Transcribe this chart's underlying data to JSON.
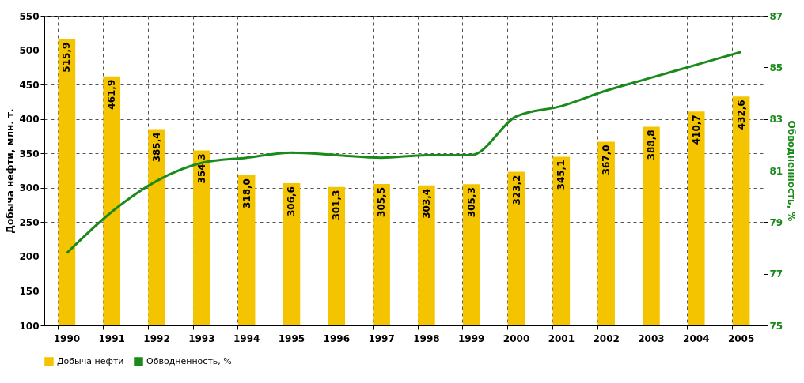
{
  "chart_data": {
    "type": "bar",
    "ylabel": "Добыча нефти, млн. т.",
    "y2label": "Обводненность, %",
    "categories": [
      "1990",
      "1991",
      "1992",
      "1993",
      "1994",
      "1995",
      "1996",
      "1997",
      "1998",
      "1999",
      "2000",
      "2001",
      "2002",
      "2003",
      "2004",
      "2005"
    ],
    "series": [
      {
        "name": "Добыча нефти",
        "color": "#f5c400",
        "values": [
          515.9,
          461.9,
          385.4,
          354.3,
          318.0,
          306.6,
          301.3,
          305.5,
          303.4,
          305.3,
          323.2,
          345.1,
          367.0,
          388.8,
          410.7,
          432.6
        ],
        "value_labels": [
          "515,9",
          "461,9",
          "385,4",
          "354,3",
          "318,0",
          "306,6",
          "301,3",
          "305,5",
          "303,4",
          "305,3",
          "323,2",
          "345,1",
          "367,0",
          "388,8",
          "410,7",
          "432,6"
        ]
      },
      {
        "name": "Обводненность, %",
        "type": "line",
        "axis": "y2",
        "color": "#1a8a1a",
        "values": [
          77.8,
          79.4,
          80.6,
          81.3,
          81.5,
          81.7,
          81.6,
          81.5,
          81.6,
          81.6,
          83.1,
          83.5,
          84.1,
          84.6,
          85.1,
          85.6
        ]
      }
    ],
    "ylim": [
      100,
      550
    ],
    "yticks": [
      100,
      150,
      200,
      250,
      300,
      350,
      400,
      450,
      500,
      550
    ],
    "y2lim": [
      75,
      87
    ],
    "y2ticks": [
      75,
      77,
      79,
      81,
      83,
      85,
      87
    ],
    "grid": true,
    "legend": "bottom"
  }
}
